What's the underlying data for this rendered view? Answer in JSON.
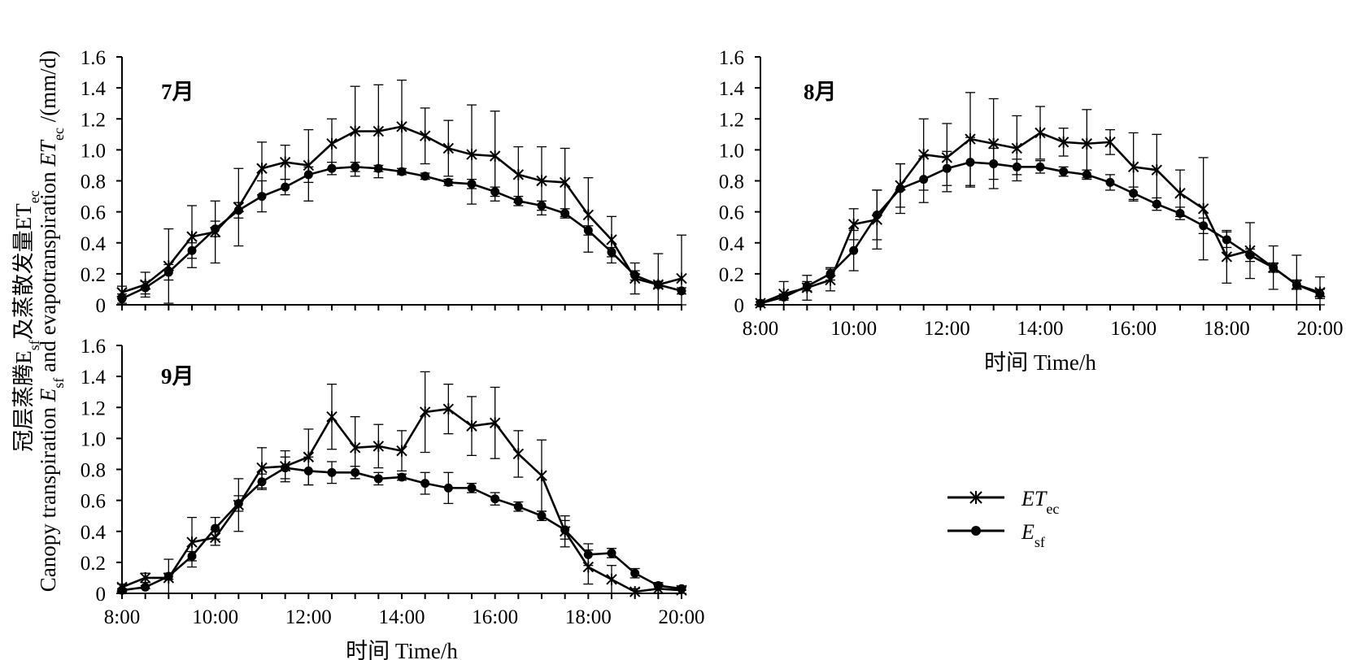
{
  "ylabel_line1": "冠层蒸腾E",
  "ylabel_line1_sub": "sf",
  "ylabel_line1_mid": "及蒸散发量ET",
  "ylabel_line1_sub2": "ec",
  "ylabel_line2_a": "Canopy transpiration ",
  "ylabel_line2_E": "E",
  "ylabel_line2_sub": "sf",
  "ylabel_line2_b": " and evapotranspiration ",
  "ylabel_line2_ET": "ET",
  "ylabel_line2_sub2": "ec",
  "ylabel_line2_unit": " /(mm/d)",
  "legend": {
    "et_main": "ET",
    "et_sub": "ec",
    "e_main": "E",
    "e_sub": "sf"
  },
  "chart_data": [
    {
      "type": "line",
      "title": "7月",
      "xlabel": "",
      "ylabel": "",
      "ylim": [
        0,
        1.6
      ],
      "yticks": [
        "0",
        "0.2",
        "0.4",
        "0.6",
        "0.8",
        "1.0",
        "1.2",
        "1.4",
        "1.6"
      ],
      "xticks": [],
      "x": [
        8,
        8.5,
        9,
        9.5,
        10,
        10.5,
        11,
        11.5,
        12,
        12.5,
        13,
        13.5,
        14,
        14.5,
        15,
        15.5,
        16,
        16.5,
        17,
        17.5,
        18,
        18.5,
        19,
        19.5,
        20
      ],
      "series": [
        {
          "name": "ETec",
          "marker": "star",
          "values": [
            0.08,
            0.13,
            0.25,
            0.44,
            0.47,
            0.63,
            0.88,
            0.92,
            0.9,
            1.04,
            1.12,
            1.12,
            1.15,
            1.09,
            1.01,
            0.97,
            0.96,
            0.84,
            0.8,
            0.79,
            0.58,
            0.42,
            0.17,
            0.13,
            0.17
          ],
          "errors": [
            0.04,
            0.08,
            0.24,
            0.2,
            0.2,
            0.25,
            0.17,
            0.11,
            0.23,
            0.16,
            0.29,
            0.3,
            0.3,
            0.18,
            0.18,
            0.32,
            0.29,
            0.18,
            0.22,
            0.22,
            0.24,
            0.15,
            0.1,
            0.2,
            0.28
          ]
        },
        {
          "name": "Esf",
          "marker": "circle",
          "values": [
            0.04,
            0.11,
            0.21,
            0.35,
            0.49,
            0.61,
            0.7,
            0.76,
            0.84,
            0.88,
            0.89,
            0.88,
            0.86,
            0.83,
            0.79,
            0.78,
            0.73,
            0.67,
            0.64,
            0.59,
            0.48,
            0.34,
            0.19,
            0.13,
            0.09
          ],
          "errors": [
            0.03,
            0.04,
            0.05,
            0.05,
            0.05,
            0.05,
            0.1,
            0.05,
            0.05,
            0.04,
            0.03,
            0.02,
            0.02,
            0.02,
            0.02,
            0.03,
            0.03,
            0.03,
            0.03,
            0.03,
            0.03,
            0.03,
            0.03,
            0.02,
            0.02
          ]
        }
      ]
    },
    {
      "type": "line",
      "title": "8月",
      "xlabel": "时间 Time/h",
      "ylabel": "",
      "ylim": [
        0,
        1.6
      ],
      "yticks": [
        "0",
        "0.2",
        "0.4",
        "0.6",
        "0.8",
        "1.0",
        "1.2",
        "1.4",
        "1.6"
      ],
      "xticks": [
        "8:00",
        "10:00",
        "12:00",
        "14:00",
        "16:00",
        "18:00",
        "20:00"
      ],
      "x": [
        8,
        8.5,
        9,
        9.5,
        10,
        10.5,
        11,
        11.5,
        12,
        12.5,
        13,
        13.5,
        14,
        14.5,
        15,
        15.5,
        16,
        16.5,
        17,
        17.5,
        18,
        18.5,
        19,
        19.5,
        20
      ],
      "series": [
        {
          "name": "ETec",
          "marker": "star",
          "values": [
            0.01,
            0.07,
            0.11,
            0.16,
            0.52,
            0.55,
            0.77,
            0.97,
            0.95,
            1.07,
            1.04,
            1.01,
            1.11,
            1.05,
            1.04,
            1.05,
            0.89,
            0.87,
            0.72,
            0.62,
            0.31,
            0.35,
            0.24,
            0.13,
            0.08
          ],
          "errors": [
            0.01,
            0.08,
            0.08,
            0.07,
            0.1,
            0.19,
            0.14,
            0.23,
            0.22,
            0.3,
            0.29,
            0.21,
            0.17,
            0.09,
            0.22,
            0.08,
            0.22,
            0.23,
            0.15,
            0.33,
            0.17,
            0.18,
            0.14,
            0.19,
            0.1
          ]
        },
        {
          "name": "Esf",
          "marker": "circle",
          "values": [
            0.01,
            0.05,
            0.12,
            0.2,
            0.35,
            0.58,
            0.75,
            0.81,
            0.88,
            0.92,
            0.91,
            0.89,
            0.89,
            0.86,
            0.84,
            0.79,
            0.72,
            0.65,
            0.59,
            0.51,
            0.42,
            0.32,
            0.24,
            0.13,
            0.07
          ],
          "errors": [
            0.01,
            0.02,
            0.03,
            0.04,
            0.13,
            0.16,
            0.16,
            0.15,
            0.11,
            0.16,
            0.1,
            0.05,
            0.04,
            0.03,
            0.03,
            0.05,
            0.04,
            0.04,
            0.04,
            0.05,
            0.05,
            0.04,
            0.03,
            0.03,
            0.03
          ]
        }
      ]
    },
    {
      "type": "line",
      "title": "9月",
      "xlabel": "时间 Time/h",
      "ylabel": "",
      "ylim": [
        0,
        1.6
      ],
      "yticks": [
        "0",
        "0.2",
        "0.4",
        "0.6",
        "0.8",
        "1.0",
        "1.2",
        "1.4",
        "1.6"
      ],
      "xticks": [
        "8:00",
        "10:00",
        "12:00",
        "14:00",
        "16:00",
        "18:00",
        "20:00"
      ],
      "x": [
        8,
        8.5,
        9,
        9.5,
        10,
        10.5,
        11,
        11.5,
        12,
        12.5,
        13,
        13.5,
        14,
        14.5,
        15,
        15.5,
        16,
        16.5,
        17,
        17.5,
        18,
        18.5,
        19,
        19.5,
        20
      ],
      "series": [
        {
          "name": "ETec",
          "marker": "star",
          "values": [
            0.04,
            0.1,
            0.1,
            0.33,
            0.36,
            0.57,
            0.81,
            0.82,
            0.88,
            1.14,
            0.94,
            0.95,
            0.92,
            1.17,
            1.19,
            1.08,
            1.1,
            0.9,
            0.76,
            0.4,
            0.17,
            0.09,
            0.01,
            0.03,
            0.02
          ],
          "errors": [
            0.02,
            0.03,
            0.12,
            0.16,
            0.05,
            0.17,
            0.13,
            0.1,
            0.18,
            0.21,
            0.2,
            0.14,
            0.13,
            0.26,
            0.16,
            0.19,
            0.23,
            0.15,
            0.23,
            0.1,
            0.11,
            0.09,
            0.02,
            0.04,
            0.02
          ]
        },
        {
          "name": "Esf",
          "marker": "circle",
          "values": [
            0.02,
            0.04,
            0.11,
            0.24,
            0.42,
            0.58,
            0.72,
            0.81,
            0.79,
            0.78,
            0.78,
            0.74,
            0.75,
            0.71,
            0.68,
            0.68,
            0.61,
            0.56,
            0.5,
            0.41,
            0.25,
            0.26,
            0.13,
            0.05,
            0.03
          ],
          "errors": [
            0.01,
            0.01,
            0.02,
            0.03,
            0.07,
            0.05,
            0.05,
            0.07,
            0.09,
            0.07,
            0.04,
            0.04,
            0.02,
            0.07,
            0.1,
            0.03,
            0.04,
            0.03,
            0.03,
            0.06,
            0.07,
            0.03,
            0.03,
            0.02,
            0.01
          ]
        }
      ]
    }
  ]
}
